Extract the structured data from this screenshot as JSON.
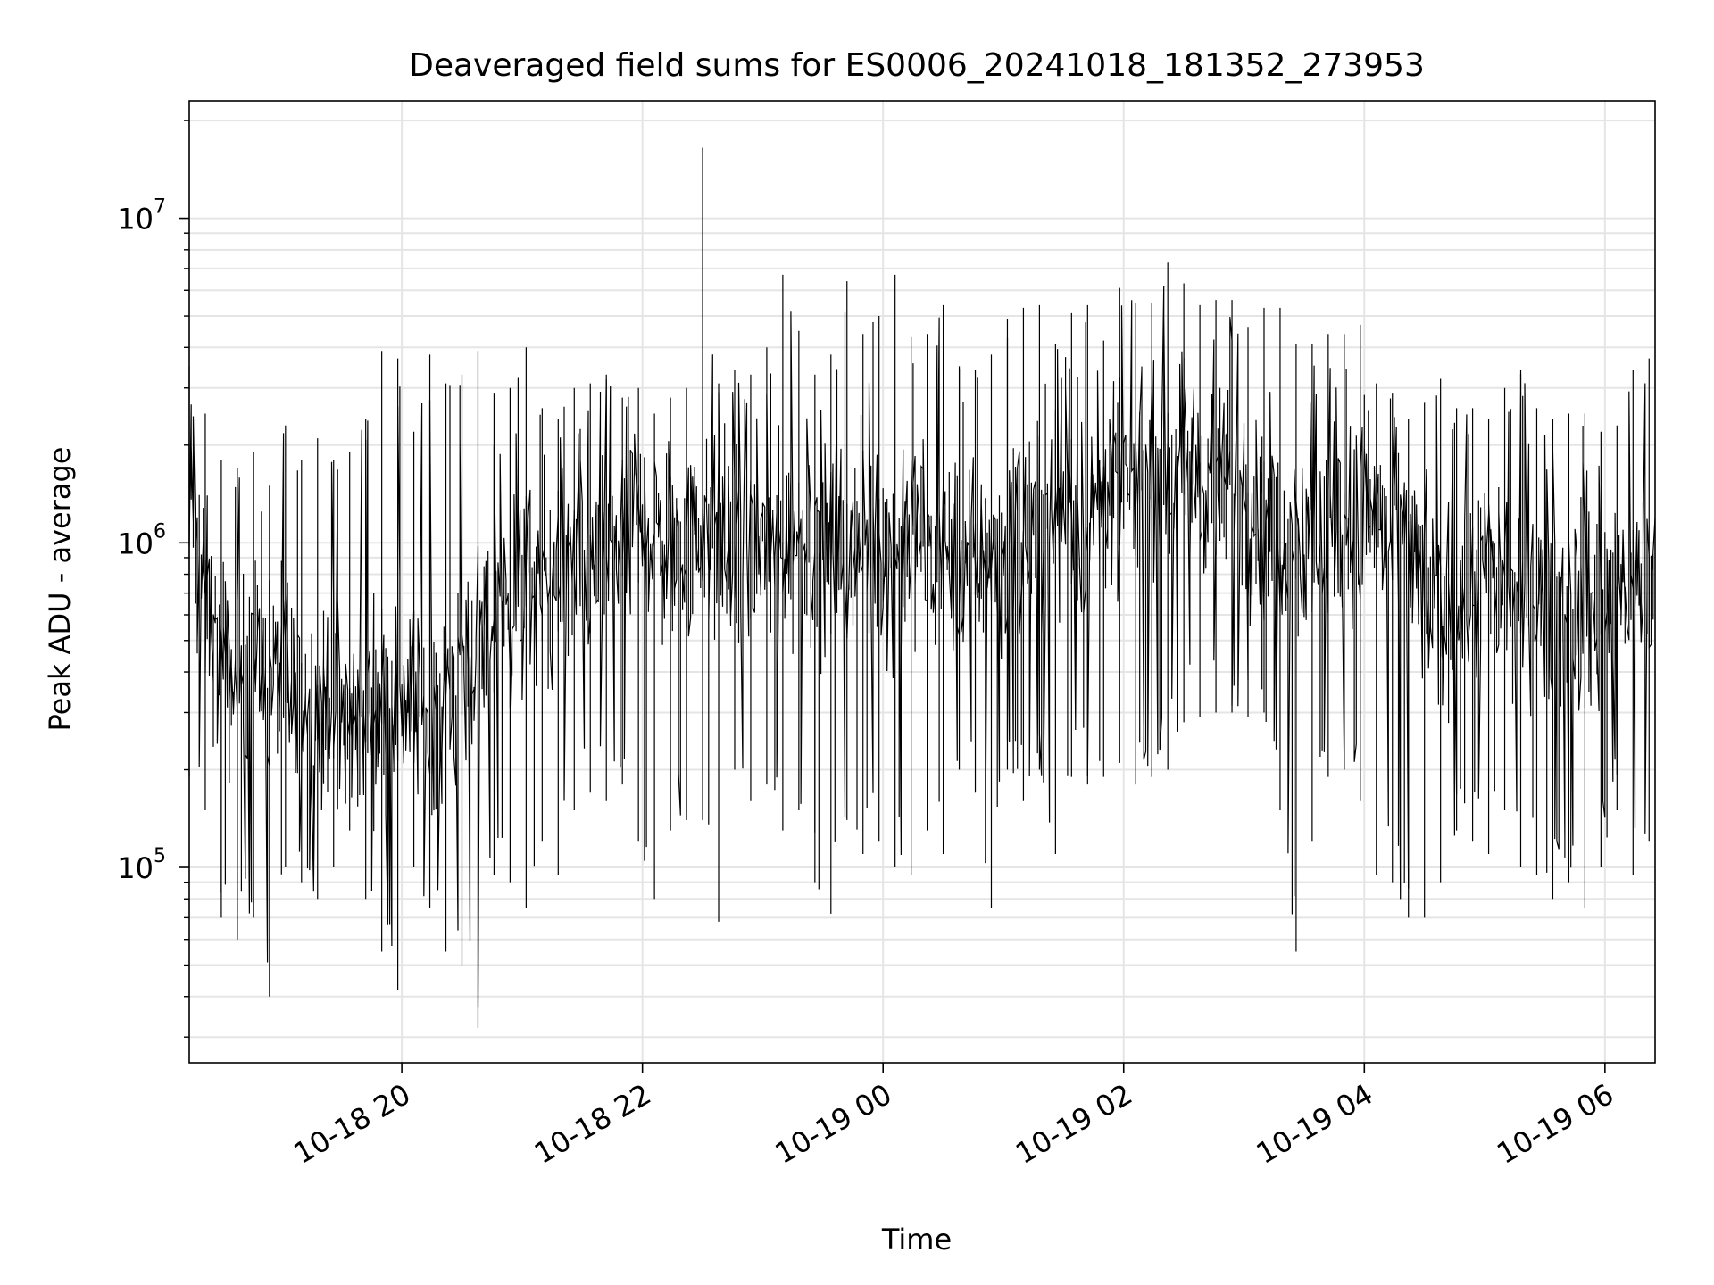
{
  "chart_data": {
    "type": "line",
    "title": "Deaveraged field sums for ES0006_20241018_181352_273953",
    "xlabel": "Time",
    "ylabel": "Peak ADU - average",
    "yscale": "log",
    "ylim": [
      25000,
      23000000
    ],
    "xlim": [
      "2024-10-18 18:14",
      "2024-10-19 06:25"
    ],
    "grid": true,
    "line_color": "#000000",
    "grid_color": "#e5e5e5",
    "x_ticks": [
      {
        "value": "2024-10-18 20:00",
        "label": "10-18 20"
      },
      {
        "value": "2024-10-18 22:00",
        "label": "10-18 22"
      },
      {
        "value": "2024-10-19 00:00",
        "label": "10-19 00"
      },
      {
        "value": "2024-10-19 02:00",
        "label": "10-19 02"
      },
      {
        "value": "2024-10-19 04:00",
        "label": "10-19 04"
      },
      {
        "value": "2024-10-19 06:00",
        "label": "10-19 06"
      }
    ],
    "y_ticks": [
      {
        "value": 100000,
        "base": "10",
        "exp": "5"
      },
      {
        "value": 1000000,
        "base": "10",
        "exp": "6"
      },
      {
        "value": 10000000,
        "base": "10",
        "exp": "7"
      }
    ],
    "series": [
      {
        "x": [
          "2024-10-18 18:14",
          "2024-10-18 18:22",
          "2024-10-18 18:30",
          "2024-10-18 18:38",
          "2024-10-18 18:46",
          "2024-10-18 18:54",
          "2024-10-18 19:02",
          "2024-10-18 19:10",
          "2024-10-18 19:18",
          "2024-10-18 19:26",
          "2024-10-18 19:34",
          "2024-10-18 19:42",
          "2024-10-18 19:50",
          "2024-10-18 19:58",
          "2024-10-18 20:06",
          "2024-10-18 20:14",
          "2024-10-18 20:22",
          "2024-10-18 20:30",
          "2024-10-18 20:38",
          "2024-10-18 20:46",
          "2024-10-18 20:54",
          "2024-10-18 21:02",
          "2024-10-18 21:10",
          "2024-10-18 21:18",
          "2024-10-18 21:26",
          "2024-10-18 21:34",
          "2024-10-18 21:42",
          "2024-10-18 21:50",
          "2024-10-18 21:58",
          "2024-10-18 22:06",
          "2024-10-18 22:14",
          "2024-10-18 22:22",
          "2024-10-18 22:30",
          "2024-10-18 22:38",
          "2024-10-18 22:46",
          "2024-10-18 22:54",
          "2024-10-18 23:02",
          "2024-10-18 23:10",
          "2024-10-18 23:18",
          "2024-10-18 23:26",
          "2024-10-18 23:34",
          "2024-10-18 23:42",
          "2024-10-18 23:50",
          "2024-10-18 23:58",
          "2024-10-19 00:06",
          "2024-10-19 00:14",
          "2024-10-19 00:22",
          "2024-10-19 00:30",
          "2024-10-19 00:38",
          "2024-10-19 00:46",
          "2024-10-19 00:54",
          "2024-10-19 01:02",
          "2024-10-19 01:10",
          "2024-10-19 01:18",
          "2024-10-19 01:26",
          "2024-10-19 01:34",
          "2024-10-19 01:42",
          "2024-10-19 01:50",
          "2024-10-19 01:58",
          "2024-10-19 02:06",
          "2024-10-19 02:14",
          "2024-10-19 02:22",
          "2024-10-19 02:30",
          "2024-10-19 02:38",
          "2024-10-19 02:46",
          "2024-10-19 02:54",
          "2024-10-19 03:02",
          "2024-10-19 03:10",
          "2024-10-19 03:18",
          "2024-10-19 03:26",
          "2024-10-19 03:34",
          "2024-10-19 03:42",
          "2024-10-19 03:50",
          "2024-10-19 03:58",
          "2024-10-19 04:06",
          "2024-10-19 04:14",
          "2024-10-19 04:22",
          "2024-10-19 04:30",
          "2024-10-19 04:38",
          "2024-10-19 04:46",
          "2024-10-19 04:54",
          "2024-10-19 05:02",
          "2024-10-19 05:10",
          "2024-10-19 05:18",
          "2024-10-19 05:26",
          "2024-10-19 05:34",
          "2024-10-19 05:42",
          "2024-10-19 05:50",
          "2024-10-19 05:58",
          "2024-10-19 06:06",
          "2024-10-19 06:14",
          "2024-10-19 06:22"
        ],
        "y": [
          1500000,
          700000,
          400000,
          350000,
          450000,
          400000,
          380000,
          320000,
          300000,
          350000,
          280000,
          300000,
          330000,
          350000,
          320000,
          300000,
          350000,
          380000,
          500000,
          600000,
          650000,
          700000,
          750000,
          700000,
          800000,
          850000,
          900000,
          1000000,
          1100000,
          1050000,
          1000000,
          950000,
          1100000,
          1000000,
          950000,
          900000,
          1000000,
          950000,
          1050000,
          1000000,
          900000,
          950000,
          1000000,
          1050000,
          900000,
          950000,
          1000000,
          950000,
          900000,
          850000,
          950000,
          1000000,
          1050000,
          1100000,
          1200000,
          1250000,
          1150000,
          1300000,
          1400000,
          1450000,
          1600000,
          1700000,
          1800000,
          1600000,
          1500000,
          1400000,
          1300000,
          1200000,
          1100000,
          1050000,
          1000000,
          1050000,
          1100000,
          1150000,
          1200000,
          1100000,
          1000000,
          700000,
          600000,
          650000,
          700000,
          800000,
          750000,
          700000,
          650000,
          600000,
          700000,
          650000,
          600000,
          700000,
          800000,
          750000
        ],
        "upper": [
          3500000,
          2500000,
          1800000,
          1700000,
          1900000,
          1500000,
          2300000,
          1800000,
          2100000,
          1800000,
          1900000,
          2400000,
          3900000,
          3700000,
          2200000,
          3800000,
          3100000,
          3300000,
          3900000,
          2900000,
          3000000,
          4000000,
          2600000,
          2400000,
          3000000,
          3100000,
          3300000,
          2800000,
          3000000,
          2500000,
          2800000,
          3000000,
          16500000,
          3100000,
          3400000,
          3300000,
          4000000,
          6700000,
          4500000,
          3300000,
          3800000,
          6400000,
          4400000,
          5000000,
          6700000,
          4300000,
          4400000,
          5400000,
          3500000,
          3400000,
          3800000,
          4900000,
          5300000,
          5400000,
          4100000,
          5100000,
          5400000,
          4200000,
          6100000,
          5500000,
          5500000,
          7300000,
          6300000,
          5400000,
          5600000,
          5600000,
          4600000,
          5300000,
          5300000,
          4100000,
          4100000,
          4400000,
          4400000,
          4700000,
          3100000,
          2900000,
          2400000,
          2700000,
          3200000,
          2600000,
          2600000,
          2400000,
          3000000,
          3400000,
          2600000,
          2400000,
          2500000,
          2500000,
          2200000,
          2300000,
          3400000,
          3700000
        ],
        "lower": [
          190000,
          150000,
          70000,
          60000,
          70000,
          40000,
          100000,
          90000,
          80000,
          100000,
          130000,
          80000,
          55000,
          42000,
          100000,
          75000,
          55000,
          50000,
          32000,
          95000,
          90000,
          75000,
          120000,
          95000,
          150000,
          170000,
          160000,
          180000,
          120000,
          80000,
          130000,
          140000,
          140000,
          68000,
          200000,
          160000,
          180000,
          130000,
          150000,
          90000,
          72000,
          140000,
          110000,
          120000,
          100000,
          95000,
          130000,
          110000,
          200000,
          170000,
          75000,
          200000,
          160000,
          200000,
          110000,
          190000,
          180000,
          190000,
          210000,
          180000,
          190000,
          200000,
          280000,
          290000,
          300000,
          300000,
          290000,
          300000,
          150000,
          55000,
          120000,
          190000,
          200000,
          160000,
          95000,
          90000,
          70000,
          70000,
          90000,
          130000,
          120000,
          110000,
          150000,
          100000,
          95000,
          80000,
          90000,
          75000,
          100000,
          150000,
          95000,
          120000
        ]
      }
    ]
  }
}
